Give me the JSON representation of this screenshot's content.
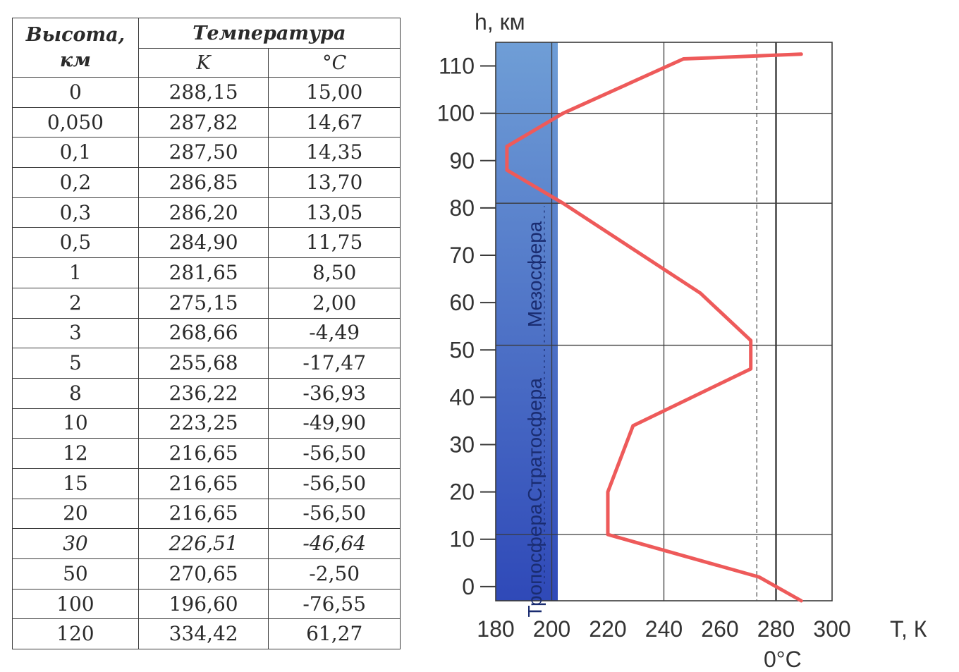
{
  "table": {
    "header_height": "Высота, км",
    "header_temp": "Температура",
    "header_k": "K",
    "header_c": "°C",
    "rows": [
      {
        "h": "0",
        "k": "288,15",
        "c": "15,00"
      },
      {
        "h": "0,050",
        "k": "287,82",
        "c": "14,67"
      },
      {
        "h": "0,1",
        "k": "287,50",
        "c": "14,35"
      },
      {
        "h": "0,2",
        "k": "286,85",
        "c": "13,70"
      },
      {
        "h": "0,3",
        "k": "286,20",
        "c": "13,05"
      },
      {
        "h": "0,5",
        "k": "284,90",
        "c": "11,75"
      },
      {
        "h": "1",
        "k": "281,65",
        "c": "8,50"
      },
      {
        "h": "2",
        "k": "275,15",
        "c": "2,00"
      },
      {
        "h": "3",
        "k": "268,66",
        "c": "-4,49"
      },
      {
        "h": "5",
        "k": "255,68",
        "c": "-17,47"
      },
      {
        "h": "8",
        "k": "236,22",
        "c": "-36,93"
      },
      {
        "h": "10",
        "k": "223,25",
        "c": "-49,90"
      },
      {
        "h": "12",
        "k": "216,65",
        "c": "-56,50"
      },
      {
        "h": "15",
        "k": "216,65",
        "c": "-56,50"
      },
      {
        "h": "20",
        "k": "216,65",
        "c": "-56,50"
      },
      {
        "h": "30",
        "k": "226,51",
        "c": "-46,64"
      },
      {
        "h": "50",
        "k": "270,65",
        "c": "-2,50"
      },
      {
        "h": "100",
        "k": "196,60",
        "c": "-76,55"
      },
      {
        "h": "120",
        "k": "334,42",
        "c": "61,27"
      }
    ]
  },
  "chart_data": {
    "type": "line",
    "xlabel": "T, К",
    "ylabel": "h, км",
    "xlim": [
      180,
      300
    ],
    "ylim": [
      -3,
      115
    ],
    "x_ticks": [
      180,
      200,
      220,
      240,
      260,
      280,
      300
    ],
    "y_ticks": [
      0,
      10,
      20,
      30,
      40,
      50,
      60,
      70,
      80,
      90,
      100,
      110
    ],
    "zero_celsius": {
      "x": 273.15,
      "label": "0°C"
    },
    "series": [
      {
        "color": "#ee5a5a",
        "x": [
          289,
          274,
          220,
          220,
          229,
          271,
          271,
          253,
          204,
          184,
          184,
          204,
          247,
          289
        ],
        "y": [
          -3,
          2,
          11,
          20,
          34,
          46,
          52,
          62,
          81,
          88,
          93,
          100,
          111.5,
          112.5
        ]
      }
    ],
    "layers": [
      {
        "label": "Тропосфера",
        "from": 0,
        "to": 11
      },
      {
        "label": "Стратосфера",
        "from": 11,
        "to": 51
      },
      {
        "label": "Мезосфера",
        "from": 51,
        "to": 81
      }
    ],
    "colors": {
      "band_top": "#6f9ed6",
      "band_bottom": "#2f49b8",
      "line": "#ee5a5a",
      "grid": "#3a3a3a"
    }
  }
}
